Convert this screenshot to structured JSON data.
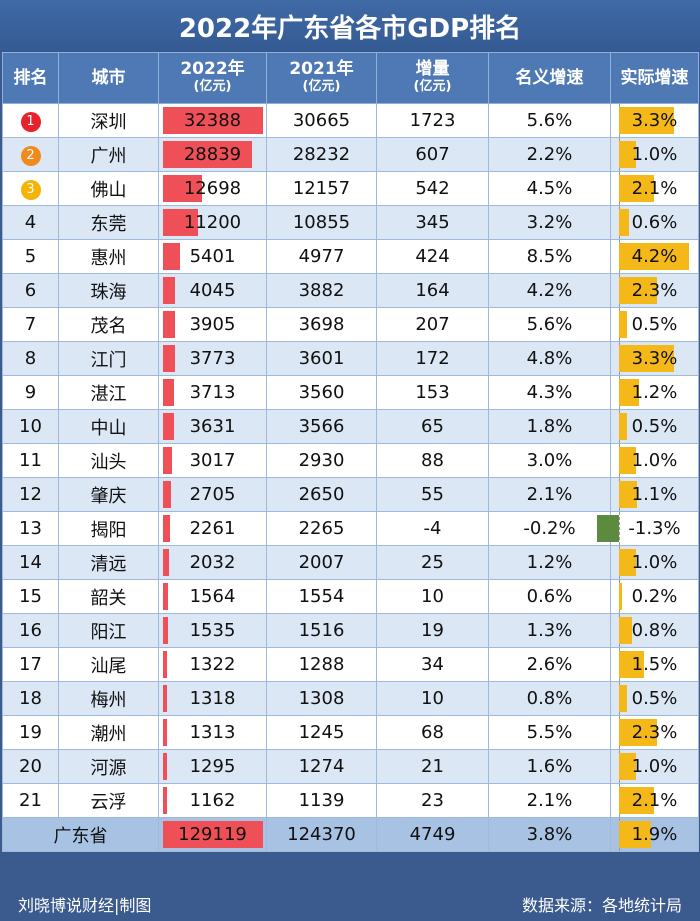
{
  "title": "2022年广东省各市GDP排名",
  "headers": {
    "rank": "排名",
    "city": "城市",
    "gdp2022": "2022年",
    "gdp2022_unit": "(亿元)",
    "gdp2021": "2021年",
    "gdp2021_unit": "(亿元)",
    "increase": "增量",
    "increase_unit": "(亿元)",
    "nominal": "名义增速",
    "real": "实际增速"
  },
  "colors": {
    "bar": "#ef4f57",
    "rate_positive": "#f4b818",
    "rate_negative": "#5c8a3e",
    "badge_gold": "#f5b400",
    "badge_silver": "#f08a1c",
    "badge_first": "#e8212a"
  },
  "rows": [
    {
      "rank": "1",
      "city": "深圳",
      "gdp2022": "32388",
      "gdp2021": "30665",
      "increase": "1723",
      "nominal": "5.6%",
      "real": "3.3%",
      "gdp_value": 32388,
      "real_value": 3.3
    },
    {
      "rank": "2",
      "city": "广州",
      "gdp2022": "28839",
      "gdp2021": "28232",
      "increase": "607",
      "nominal": "2.2%",
      "real": "1.0%",
      "gdp_value": 28839,
      "real_value": 1.0
    },
    {
      "rank": "3",
      "city": "佛山",
      "gdp2022": "12698",
      "gdp2021": "12157",
      "increase": "542",
      "nominal": "4.5%",
      "real": "2.1%",
      "gdp_value": 12698,
      "real_value": 2.1
    },
    {
      "rank": "4",
      "city": "东莞",
      "gdp2022": "11200",
      "gdp2021": "10855",
      "increase": "345",
      "nominal": "3.2%",
      "real": "0.6%",
      "gdp_value": 11200,
      "real_value": 0.6
    },
    {
      "rank": "5",
      "city": "惠州",
      "gdp2022": "5401",
      "gdp2021": "4977",
      "increase": "424",
      "nominal": "8.5%",
      "real": "4.2%",
      "gdp_value": 5401,
      "real_value": 4.2
    },
    {
      "rank": "6",
      "city": "珠海",
      "gdp2022": "4045",
      "gdp2021": "3882",
      "increase": "164",
      "nominal": "4.2%",
      "real": "2.3%",
      "gdp_value": 4045,
      "real_value": 2.3
    },
    {
      "rank": "7",
      "city": "茂名",
      "gdp2022": "3905",
      "gdp2021": "3698",
      "increase": "207",
      "nominal": "5.6%",
      "real": "0.5%",
      "gdp_value": 3905,
      "real_value": 0.5
    },
    {
      "rank": "8",
      "city": "江门",
      "gdp2022": "3773",
      "gdp2021": "3601",
      "increase": "172",
      "nominal": "4.8%",
      "real": "3.3%",
      "gdp_value": 3773,
      "real_value": 3.3
    },
    {
      "rank": "9",
      "city": "湛江",
      "gdp2022": "3713",
      "gdp2021": "3560",
      "increase": "153",
      "nominal": "4.3%",
      "real": "1.2%",
      "gdp_value": 3713,
      "real_value": 1.2
    },
    {
      "rank": "10",
      "city": "中山",
      "gdp2022": "3631",
      "gdp2021": "3566",
      "increase": "65",
      "nominal": "1.8%",
      "real": "0.5%",
      "gdp_value": 3631,
      "real_value": 0.5
    },
    {
      "rank": "11",
      "city": "汕头",
      "gdp2022": "3017",
      "gdp2021": "2930",
      "increase": "88",
      "nominal": "3.0%",
      "real": "1.0%",
      "gdp_value": 3017,
      "real_value": 1.0
    },
    {
      "rank": "12",
      "city": "肇庆",
      "gdp2022": "2705",
      "gdp2021": "2650",
      "increase": "55",
      "nominal": "2.1%",
      "real": "1.1%",
      "gdp_value": 2705,
      "real_value": 1.1
    },
    {
      "rank": "13",
      "city": "揭阳",
      "gdp2022": "2261",
      "gdp2021": "2265",
      "increase": "-4",
      "nominal": "-0.2%",
      "real": "-1.3%",
      "gdp_value": 2261,
      "real_value": -1.3
    },
    {
      "rank": "14",
      "city": "清远",
      "gdp2022": "2032",
      "gdp2021": "2007",
      "increase": "25",
      "nominal": "1.2%",
      "real": "1.0%",
      "gdp_value": 2032,
      "real_value": 1.0
    },
    {
      "rank": "15",
      "city": "韶关",
      "gdp2022": "1564",
      "gdp2021": "1554",
      "increase": "10",
      "nominal": "0.6%",
      "real": "0.2%",
      "gdp_value": 1564,
      "real_value": 0.2
    },
    {
      "rank": "16",
      "city": "阳江",
      "gdp2022": "1535",
      "gdp2021": "1516",
      "increase": "19",
      "nominal": "1.3%",
      "real": "0.8%",
      "gdp_value": 1535,
      "real_value": 0.8
    },
    {
      "rank": "17",
      "city": "汕尾",
      "gdp2022": "1322",
      "gdp2021": "1288",
      "increase": "34",
      "nominal": "2.6%",
      "real": "1.5%",
      "gdp_value": 1322,
      "real_value": 1.5
    },
    {
      "rank": "18",
      "city": "梅州",
      "gdp2022": "1318",
      "gdp2021": "1308",
      "increase": "10",
      "nominal": "0.8%",
      "real": "0.5%",
      "gdp_value": 1318,
      "real_value": 0.5
    },
    {
      "rank": "19",
      "city": "潮州",
      "gdp2022": "1313",
      "gdp2021": "1245",
      "increase": "68",
      "nominal": "5.5%",
      "real": "2.3%",
      "gdp_value": 1313,
      "real_value": 2.3
    },
    {
      "rank": "20",
      "city": "河源",
      "gdp2022": "1295",
      "gdp2021": "1274",
      "increase": "21",
      "nominal": "1.6%",
      "real": "1.0%",
      "gdp_value": 1295,
      "real_value": 1.0
    },
    {
      "rank": "21",
      "city": "云浮",
      "gdp2022": "1162",
      "gdp2021": "1139",
      "increase": "23",
      "nominal": "2.1%",
      "real": "2.1%",
      "gdp_value": 1162,
      "real_value": 2.1
    }
  ],
  "total": {
    "city": "广东省",
    "gdp2022": "129119",
    "gdp2021": "124370",
    "increase": "4749",
    "nominal": "3.8%",
    "real": "1.9%",
    "real_value": 1.9
  },
  "footer": {
    "left": "刘晓博说财经|制图",
    "right": "数据来源：各地统计局"
  }
}
